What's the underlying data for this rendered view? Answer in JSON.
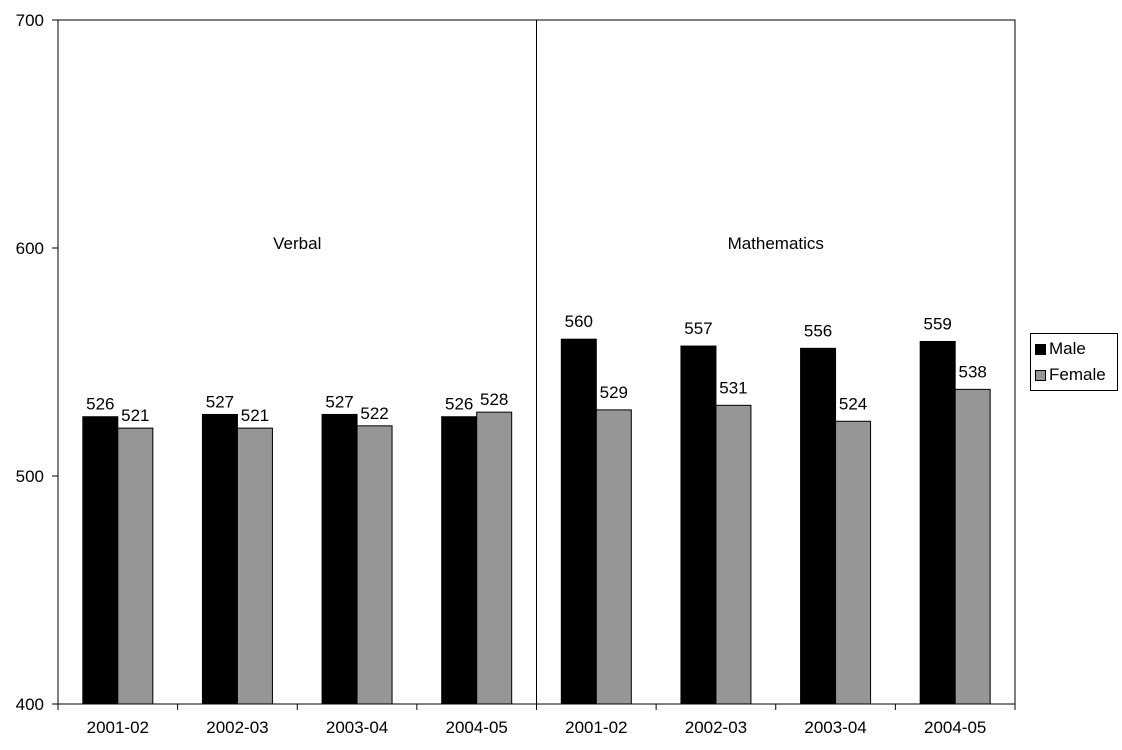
{
  "chart_data": {
    "type": "bar",
    "title": "",
    "xlabel": "",
    "ylabel": "",
    "ylim": [
      400,
      700
    ],
    "yticks": [
      "400",
      "500",
      "600",
      "700"
    ],
    "grid": false,
    "legend_position": "right",
    "groups": [
      {
        "label": "Verbal",
        "categories": [
          "2001-02",
          "2002-03",
          "2003-04",
          "2004-05"
        ]
      },
      {
        "label": "Mathematics",
        "categories": [
          "2001-02",
          "2002-03",
          "2003-04",
          "2004-05"
        ]
      }
    ],
    "series": [
      {
        "name": "Male",
        "color": "#000000",
        "values": [
          526,
          527,
          527,
          526,
          560,
          557,
          556,
          559
        ]
      },
      {
        "name": "Female",
        "color": "#969696",
        "values": [
          521,
          521,
          522,
          528,
          529,
          531,
          524,
          538
        ]
      }
    ]
  }
}
